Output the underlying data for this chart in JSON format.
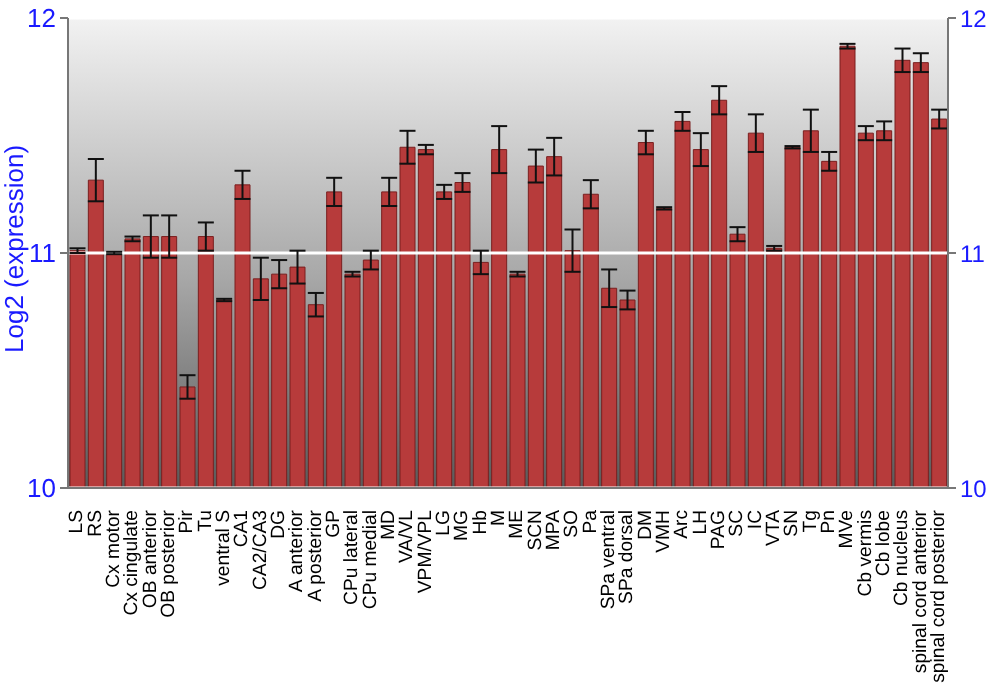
{
  "chart_data": {
    "type": "bar",
    "ylabel": "Log2 (expression)",
    "categories": [
      "LS",
      "RS",
      "Cx motor",
      "Cx cingulate",
      "OB anterior",
      "OB posterior",
      "Pir",
      "Tu",
      "ventral S",
      "CA1",
      "CA2/CA3",
      "DG",
      "A anterior",
      "A posterior",
      "GP",
      "CPu lateral",
      "CPu medial",
      "MD",
      "VA/VL",
      "VPM/VPL",
      "LG",
      "MG",
      "Hb",
      "M",
      "ME",
      "SCN",
      "MPA",
      "SO",
      "Pa",
      "SPa ventral",
      "SPa dorsal",
      "DM",
      "VMH",
      "Arc",
      "LH",
      "PAG",
      "SC",
      "IC",
      "VTA",
      "SN",
      "Tg",
      "Pn",
      "MVe",
      "Cb vermis",
      "Cb lobe",
      "Cb nucleus",
      "spinal cord anterior",
      "spinal cord posterior"
    ],
    "values": [
      11.01,
      11.31,
      11.0,
      11.06,
      11.07,
      11.07,
      10.43,
      11.07,
      10.8,
      11.29,
      10.89,
      10.91,
      10.94,
      10.78,
      11.26,
      10.91,
      10.97,
      11.26,
      11.45,
      11.44,
      11.26,
      11.3,
      10.96,
      11.44,
      10.91,
      11.37,
      11.41,
      11.01,
      11.25,
      10.85,
      10.8,
      11.47,
      11.19,
      11.56,
      11.44,
      11.65,
      11.08,
      11.51,
      11.02,
      11.45,
      11.52,
      11.39,
      11.88,
      11.51,
      11.52,
      11.82,
      11.81,
      11.57
    ],
    "errors": [
      0.01,
      0.09,
      0.005,
      0.01,
      0.09,
      0.09,
      0.05,
      0.06,
      0.005,
      0.06,
      0.09,
      0.06,
      0.07,
      0.05,
      0.06,
      0.01,
      0.04,
      0.06,
      0.07,
      0.02,
      0.03,
      0.04,
      0.05,
      0.1,
      0.01,
      0.07,
      0.08,
      0.09,
      0.06,
      0.08,
      0.04,
      0.05,
      0.005,
      0.04,
      0.07,
      0.06,
      0.03,
      0.08,
      0.01,
      0.005,
      0.09,
      0.04,
      0.01,
      0.03,
      0.04,
      0.05,
      0.04,
      0.04
    ],
    "color": "#b73b3b",
    "ylim": [
      10,
      12
    ],
    "yticks": [
      10,
      11,
      12
    ],
    "y2lim": [
      10,
      12
    ],
    "y2ticks": [
      10,
      11,
      12
    ],
    "grid": "y"
  }
}
